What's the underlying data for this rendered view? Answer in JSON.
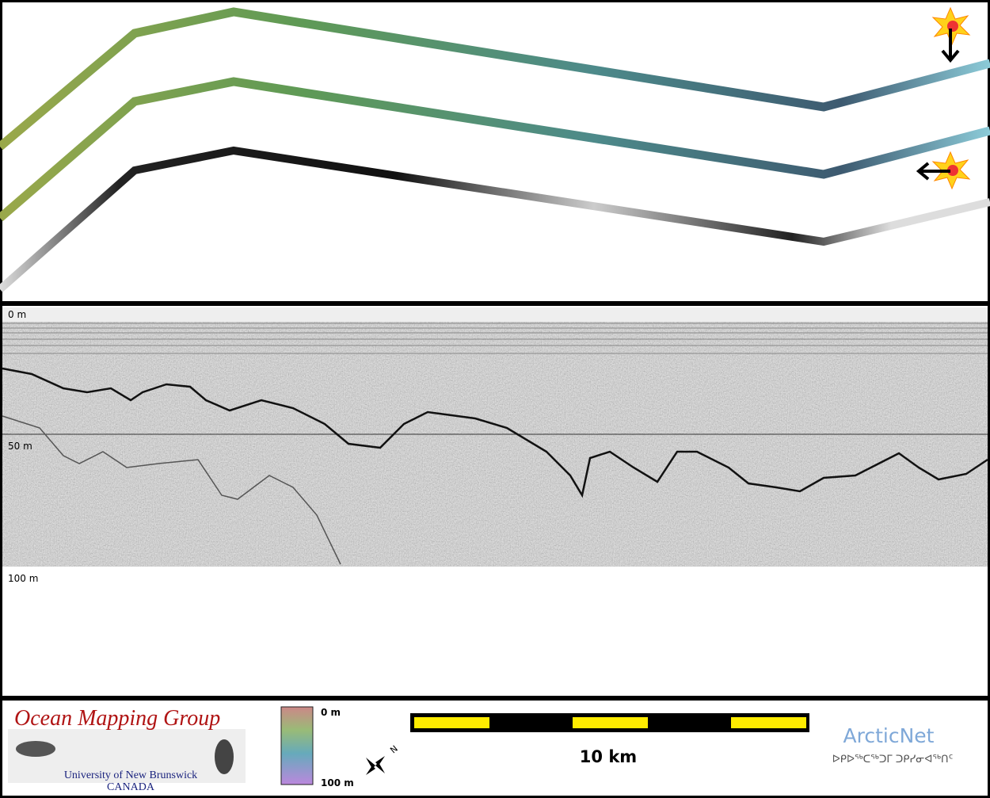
{
  "profile": {
    "depth_labels": [
      "0 m",
      "50 m",
      "100 m"
    ]
  },
  "logo": {
    "title": "Ocean Mapping Group",
    "university": "University of New Brunswick",
    "country": "CANADA"
  },
  "colorbar": {
    "top_label": "0 m",
    "bottom_label": "100 m"
  },
  "compass": {
    "label": "N"
  },
  "scale_bar": {
    "label": "10 km"
  },
  "partner": {
    "name": "ArcticNet",
    "syllabics": "ᐅᑭᐅᖅᑕᖅᑐᒥ ᑐᑭᓯᓂᐊᖅᑎᑦ"
  }
}
